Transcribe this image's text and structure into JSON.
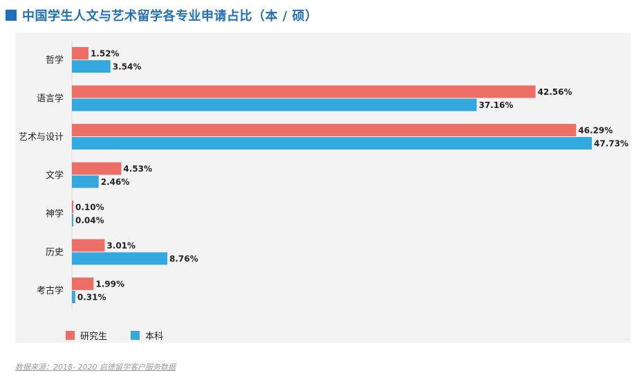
{
  "title": "中国学生人文与艺术留学各专业申请占比（本 / 硕）",
  "source": "数据来源：2018- 2020 启德留学客户服务数据",
  "colors": {
    "graduate": "#ec6e65",
    "undergraduate": "#34a9e0",
    "title": "#1f6fbf"
  },
  "legend": [
    {
      "label": "研究生",
      "color": "#ec6e65"
    },
    {
      "label": "本科",
      "color": "#34a9e0"
    }
  ],
  "chart_data": {
    "type": "bar",
    "orientation": "horizontal",
    "categories": [
      "哲学",
      "语言学",
      "艺术与设计",
      "文学",
      "神学",
      "历史",
      "考古学"
    ],
    "series": [
      {
        "name": "研究生",
        "values": [
          1.52,
          42.56,
          46.29,
          4.53,
          0.1,
          3.01,
          1.99
        ],
        "labels": [
          "1.52%",
          "42.56%",
          "46.29%",
          "4.53%",
          "0.10%",
          "3.01%",
          "1.99%"
        ]
      },
      {
        "name": "本科",
        "values": [
          3.54,
          37.16,
          47.73,
          2.46,
          0.04,
          8.76,
          0.31
        ],
        "labels": [
          "3.54%",
          "37.16%",
          "47.73%",
          "2.46%",
          "0.04%",
          "8.76%",
          "0.31%"
        ]
      }
    ],
    "unit": "%",
    "xlim": [
      0,
      47.73
    ],
    "grid": false,
    "legend_position": "bottom-left"
  }
}
